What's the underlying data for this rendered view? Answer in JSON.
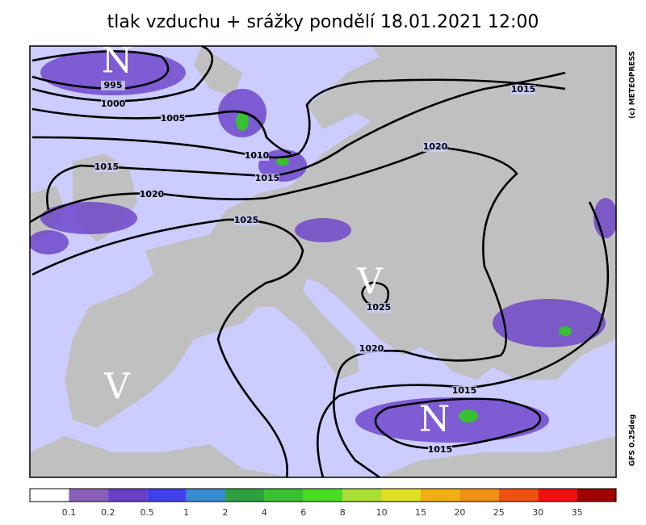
{
  "title": "tlak vzduchu + srážky pondělí 18.01.2021 12:00",
  "credit": "(c) METEOPRESS",
  "model": "GFS 0.25deg",
  "pressure_labels": [
    "995",
    "1000",
    "1005",
    "1010",
    "1015",
    "1015",
    "1020",
    "1025",
    "1020",
    "1015",
    "1025",
    "1020",
    "1015",
    "1015"
  ],
  "centers": [
    "N",
    "N",
    "V",
    "V"
  ],
  "legend": {
    "labels": [
      "0.1",
      "0.2",
      "0.5",
      "1",
      "2",
      "4",
      "6",
      "8",
      "10",
      "15",
      "20",
      "25",
      "30",
      "35"
    ],
    "colors": [
      "#ffffff",
      "#8a5fb8",
      "#6a40c8",
      "#4040ee",
      "#3a8ad0",
      "#2ea040",
      "#38c030",
      "#48dd20",
      "#a8e030",
      "#e0e020",
      "#f0b010",
      "#f09010",
      "#f05010",
      "#f01010",
      "#a00000"
    ]
  }
}
